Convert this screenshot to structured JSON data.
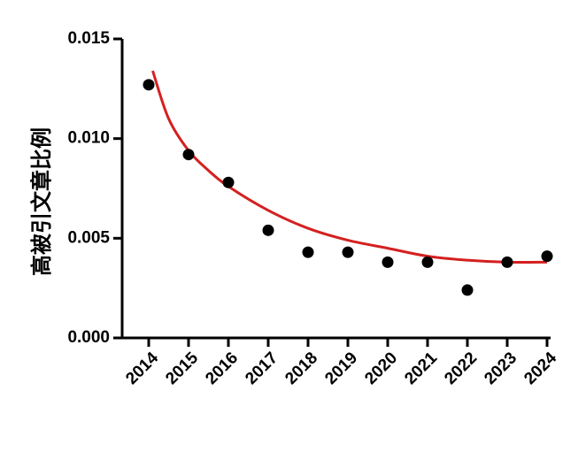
{
  "chart_data": {
    "type": "scatter",
    "title": "",
    "xlabel": "",
    "ylabel": "高被引文章比例",
    "categories": [
      "2014",
      "2015",
      "2016",
      "2017",
      "2018",
      "2019",
      "2020",
      "2021",
      "2022",
      "2023",
      "2024"
    ],
    "series": [
      {
        "values": [
          0.0127,
          0.0092,
          0.0078,
          0.0054,
          0.0043,
          0.0043,
          0.0038,
          0.0038,
          0.0024,
          0.0038,
          0.0041
        ]
      }
    ],
    "trend_curve": {
      "x": [
        2014.1,
        2014.5,
        2015,
        2015.5,
        2016,
        2017,
        2018,
        2019,
        2020,
        2021,
        2022,
        2023,
        2024
      ],
      "y": [
        0.0134,
        0.011,
        0.0094,
        0.0084,
        0.0076,
        0.0064,
        0.0055,
        0.0049,
        0.0045,
        0.0041,
        0.0039,
        0.0038,
        0.0038
      ]
    },
    "ylim": [
      0,
      0.015
    ],
    "yticks": [
      "0.000",
      "0.005",
      "0.010",
      "0.015"
    ],
    "ytick_values": [
      0,
      0.005,
      0.01,
      0.015
    ],
    "grid": false,
    "legend": "none",
    "colors": {
      "points": "#000000",
      "curve": "#d42020",
      "axis": "#000000"
    }
  }
}
